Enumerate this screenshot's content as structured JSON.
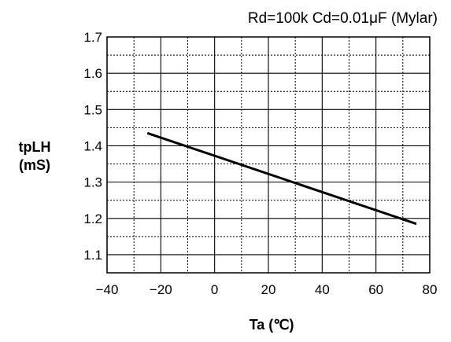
{
  "chart_data": {
    "type": "line",
    "title": "Rd=100k Cd=0.01μF (Mylar)",
    "ylabel_line1": "tpLH",
    "ylabel_line2": "(mS)",
    "xlabel": "Ta (℃)",
    "xlim": [
      -40,
      80
    ],
    "ylim": [
      1.05,
      1.7
    ],
    "x_ticks": [
      -40,
      -20,
      0,
      20,
      40,
      60,
      80
    ],
    "x_tick_labels": [
      "−40",
      "−20",
      "0",
      "20",
      "40",
      "60",
      "80"
    ],
    "y_ticks": [
      1.1,
      1.2,
      1.3,
      1.4,
      1.5,
      1.6,
      1.7
    ],
    "y_tick_labels": [
      "1.1",
      "1.2",
      "1.3",
      "1.4",
      "1.5",
      "1.6",
      "1.7"
    ],
    "grid": true,
    "series": [
      {
        "x": [
          -25,
          75
        ],
        "y": [
          1.435,
          1.185
        ]
      }
    ]
  }
}
